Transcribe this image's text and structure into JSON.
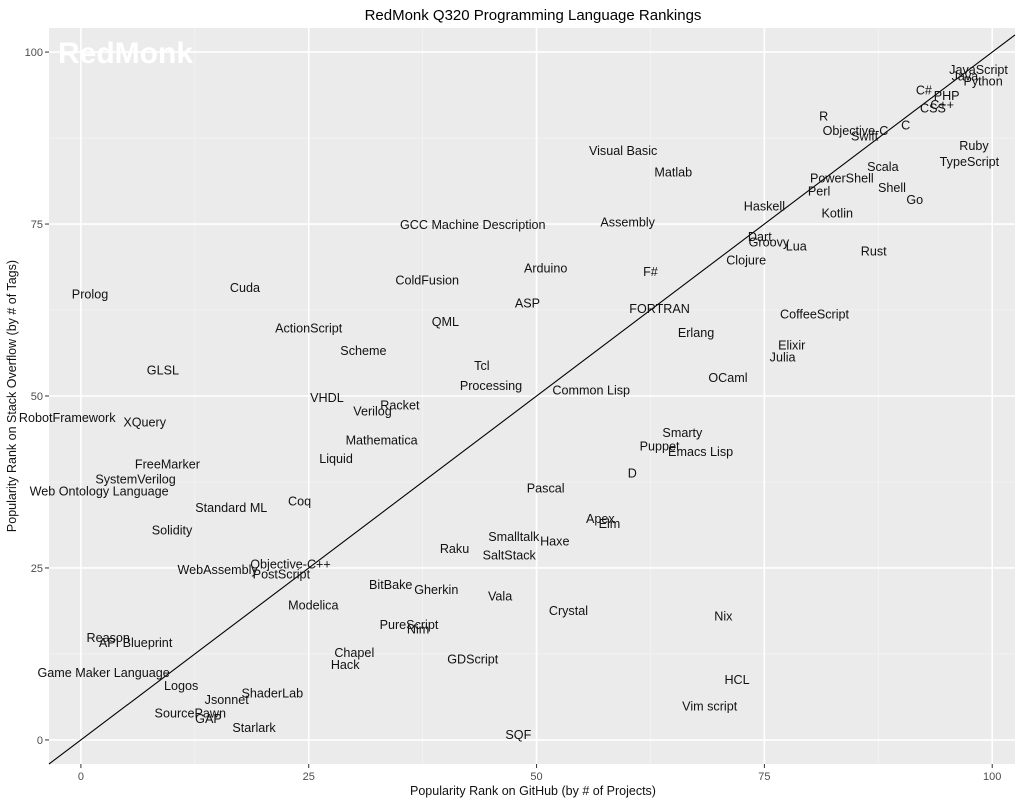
{
  "watermark": "RedMonk",
  "chart_data": {
    "type": "scatter",
    "title": "RedMonk Q320 Programming Language Rankings",
    "xlabel": "Popularity Rank on GitHub (by # of Projects)",
    "ylabel": "Popularity Rank on Stack Overflow (by # of Tags)",
    "xlim": [
      -3.5,
      102.5
    ],
    "ylim": [
      -3.5,
      103.5
    ],
    "xticks": [
      0,
      25,
      50,
      75,
      100
    ],
    "yticks": [
      0,
      25,
      50,
      75,
      100
    ],
    "grid": true,
    "reference_line": "y = x",
    "colors": {
      "panel": "#ebebeb",
      "grid": "#ffffff",
      "text": "#111111",
      "line": "#000000"
    },
    "points": [
      {
        "label": "JavaScript",
        "x": 98.5,
        "y": 97.5
      },
      {
        "label": "Java",
        "x": 97,
        "y": 96.5
      },
      {
        "label": "Python",
        "x": 99,
        "y": 95.8
      },
      {
        "label": "C#",
        "x": 92.5,
        "y": 94.5
      },
      {
        "label": "PHP",
        "x": 95,
        "y": 93.7
      },
      {
        "label": "C++",
        "x": 94.5,
        "y": 92.4
      },
      {
        "label": "CSS",
        "x": 93.5,
        "y": 91.9
      },
      {
        "label": "R",
        "x": 81.5,
        "y": 90.7
      },
      {
        "label": "C",
        "x": 90.5,
        "y": 89.4
      },
      {
        "label": "Objective-C",
        "x": 85,
        "y": 88.6
      },
      {
        "label": "Swift",
        "x": 86,
        "y": 87.8
      },
      {
        "label": "Ruby",
        "x": 98,
        "y": 86.4
      },
      {
        "label": "Visual Basic",
        "x": 59.5,
        "y": 85.7
      },
      {
        "label": "TypeScript",
        "x": 97.5,
        "y": 84.1
      },
      {
        "label": "Scala",
        "x": 88,
        "y": 83.4
      },
      {
        "label": "Matlab",
        "x": 65,
        "y": 82.6
      },
      {
        "label": "PowerShell",
        "x": 83.5,
        "y": 81.7
      },
      {
        "label": "Shell",
        "x": 89,
        "y": 80.3
      },
      {
        "label": "Perl",
        "x": 81,
        "y": 79.8
      },
      {
        "label": "Go",
        "x": 91.5,
        "y": 78.6
      },
      {
        "label": "Haskell",
        "x": 75,
        "y": 77.6
      },
      {
        "label": "Kotlin",
        "x": 83,
        "y": 76.6
      },
      {
        "label": "Assembly",
        "x": 60,
        "y": 75.3
      },
      {
        "label": "GCC Machine Description",
        "x": 43,
        "y": 74.9
      },
      {
        "label": "Dart",
        "x": 74.5,
        "y": 73.2
      },
      {
        "label": "Groovy",
        "x": 75.5,
        "y": 72.4
      },
      {
        "label": "Lua",
        "x": 78.5,
        "y": 71.8
      },
      {
        "label": "Rust",
        "x": 87,
        "y": 71.1
      },
      {
        "label": "Clojure",
        "x": 73,
        "y": 69.8
      },
      {
        "label": "Arduino",
        "x": 51,
        "y": 68.6
      },
      {
        "label": "F#",
        "x": 62.5,
        "y": 68.1
      },
      {
        "label": "ColdFusion",
        "x": 38,
        "y": 66.9
      },
      {
        "label": "Cuda",
        "x": 18,
        "y": 65.8
      },
      {
        "label": "Prolog",
        "x": 1,
        "y": 64.8
      },
      {
        "label": "ASP",
        "x": 49,
        "y": 63.5
      },
      {
        "label": "FORTRAN",
        "x": 63.5,
        "y": 62.7
      },
      {
        "label": "CoffeeScript",
        "x": 80.5,
        "y": 61.9
      },
      {
        "label": "QML",
        "x": 40,
        "y": 60.8
      },
      {
        "label": "ActionScript",
        "x": 25,
        "y": 59.9
      },
      {
        "label": "Erlang",
        "x": 67.5,
        "y": 59.2
      },
      {
        "label": "Elixir",
        "x": 78,
        "y": 57.4
      },
      {
        "label": "Scheme",
        "x": 31,
        "y": 56.6
      },
      {
        "label": "Julia",
        "x": 77,
        "y": 55.7
      },
      {
        "label": "Tcl",
        "x": 44,
        "y": 54.4
      },
      {
        "label": "GLSL",
        "x": 9,
        "y": 53.8
      },
      {
        "label": "OCaml",
        "x": 71,
        "y": 52.7
      },
      {
        "label": "Processing",
        "x": 45,
        "y": 51.5
      },
      {
        "label": "Common Lisp",
        "x": 56,
        "y": 50.9
      },
      {
        "label": "VHDL",
        "x": 27,
        "y": 49.8
      },
      {
        "label": "Racket",
        "x": 35,
        "y": 48.7
      },
      {
        "label": "Verilog",
        "x": 32,
        "y": 47.8
      },
      {
        "label": "RobotFramework",
        "x": -1.5,
        "y": 46.9
      },
      {
        "label": "XQuery",
        "x": 7,
        "y": 46.2
      },
      {
        "label": "Smarty",
        "x": 66,
        "y": 44.7
      },
      {
        "label": "Mathematica",
        "x": 33,
        "y": 43.6
      },
      {
        "label": "Puppet",
        "x": 63.5,
        "y": 42.7
      },
      {
        "label": "Emacs Lisp",
        "x": 68,
        "y": 41.9
      },
      {
        "label": "Liquid",
        "x": 28,
        "y": 40.9
      },
      {
        "label": "FreeMarker",
        "x": 9.5,
        "y": 40.1
      },
      {
        "label": "D",
        "x": 60.5,
        "y": 38.8
      },
      {
        "label": "SystemVerilog",
        "x": 6,
        "y": 37.9
      },
      {
        "label": "Pascal",
        "x": 51,
        "y": 36.6
      },
      {
        "label": "Web Ontology Language",
        "x": 2,
        "y": 36.2
      },
      {
        "label": "Coq",
        "x": 24,
        "y": 34.7
      },
      {
        "label": "Standard ML",
        "x": 16.5,
        "y": 33.8
      },
      {
        "label": "Apex",
        "x": 57,
        "y": 32.2
      },
      {
        "label": "Elm",
        "x": 58,
        "y": 31.5
      },
      {
        "label": "Solidity",
        "x": 10,
        "y": 30.5
      },
      {
        "label": "Smalltalk",
        "x": 47.5,
        "y": 29.6
      },
      {
        "label": "Haxe",
        "x": 52,
        "y": 28.9
      },
      {
        "label": "Raku",
        "x": 41,
        "y": 27.8
      },
      {
        "label": "SaltStack",
        "x": 47,
        "y": 26.9
      },
      {
        "label": "Objective-C++",
        "x": 23,
        "y": 25.6
      },
      {
        "label": "WebAssembly",
        "x": 15,
        "y": 24.8
      },
      {
        "label": "PostScript",
        "x": 22,
        "y": 24.1
      },
      {
        "label": "BitBake",
        "x": 34,
        "y": 22.6
      },
      {
        "label": "Gherkin",
        "x": 39,
        "y": 21.9
      },
      {
        "label": "Vala",
        "x": 46,
        "y": 20.9
      },
      {
        "label": "Modelica",
        "x": 25.5,
        "y": 19.6
      },
      {
        "label": "Crystal",
        "x": 53.5,
        "y": 18.8
      },
      {
        "label": "Nix",
        "x": 70.5,
        "y": 18.0
      },
      {
        "label": "PureScript",
        "x": 36,
        "y": 16.8
      },
      {
        "label": "Nim",
        "x": 37,
        "y": 16.1
      },
      {
        "label": "Reason",
        "x": 3,
        "y": 14.9
      },
      {
        "label": "API Blueprint",
        "x": 6,
        "y": 14.2
      },
      {
        "label": "Chapel",
        "x": 30,
        "y": 12.7
      },
      {
        "label": "GDScript",
        "x": 43,
        "y": 11.8
      },
      {
        "label": "Hack",
        "x": 29,
        "y": 11.0
      },
      {
        "label": "Game Maker Language",
        "x": 2.5,
        "y": 9.8
      },
      {
        "label": "HCL",
        "x": 72,
        "y": 8.8
      },
      {
        "label": "Logos",
        "x": 11,
        "y": 7.9
      },
      {
        "label": "ShaderLab",
        "x": 21,
        "y": 6.8
      },
      {
        "label": "Jsonnet",
        "x": 16,
        "y": 5.9
      },
      {
        "label": "Vim script",
        "x": 69,
        "y": 4.9
      },
      {
        "label": "SourcePawn",
        "x": 12,
        "y": 3.9
      },
      {
        "label": "GAP",
        "x": 14,
        "y": 3.1
      },
      {
        "label": "Starlark",
        "x": 19,
        "y": 1.8
      },
      {
        "label": "SQF",
        "x": 48,
        "y": 0.8
      }
    ]
  }
}
